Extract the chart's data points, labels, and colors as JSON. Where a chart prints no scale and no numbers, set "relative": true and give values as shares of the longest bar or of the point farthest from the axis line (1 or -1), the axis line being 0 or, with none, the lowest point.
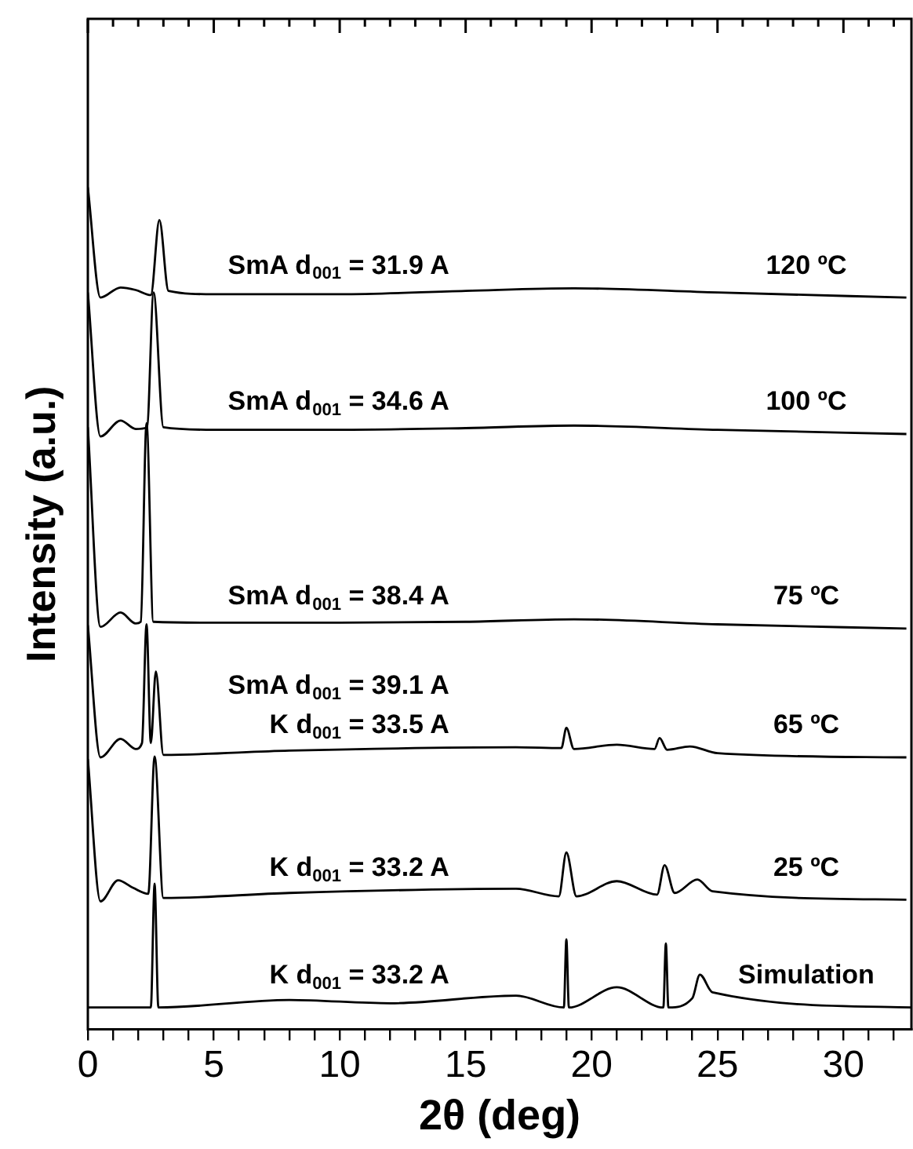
{
  "chart_data": {
    "type": "line",
    "relative": true,
    "xlabel": "2θ (deg)",
    "ylabel": "Intensity (a.u.)",
    "xlim": [
      0,
      32.7
    ],
    "xticks": [
      0,
      {
        "value": 1,
        "label": null
      },
      {
        "value": 2,
        "label": null
      },
      {
        "value": 3,
        "label": null
      },
      {
        "value": 4,
        "label": null
      },
      5,
      {
        "value": 6,
        "label": null
      },
      {
        "value": 7,
        "label": null
      },
      {
        "value": 8,
        "label": null
      },
      {
        "value": 9,
        "label": null
      },
      10,
      {
        "value": 11,
        "label": null
      },
      {
        "value": 12,
        "label": null
      },
      {
        "value": 13,
        "label": null
      },
      {
        "value": 14,
        "label": null
      },
      15,
      {
        "value": 16,
        "label": null
      },
      {
        "value": 17,
        "label": null
      },
      {
        "value": 18,
        "label": null
      },
      {
        "value": 19,
        "label": null
      },
      20,
      {
        "value": 21,
        "label": null
      },
      {
        "value": 22,
        "label": null
      },
      {
        "value": 23,
        "label": null
      },
      {
        "value": 24,
        "label": null
      },
      25,
      {
        "value": 26,
        "label": null
      },
      {
        "value": 27,
        "label": null
      },
      {
        "value": 28,
        "label": null
      },
      {
        "value": 29,
        "label": null
      },
      30,
      {
        "value": 31,
        "label": null
      },
      {
        "value": 32,
        "label": null
      }
    ],
    "grid": false,
    "legend": false,
    "marker": "none",
    "line_style": "solid",
    "series": [
      {
        "name": "120 ºC",
        "color": "#000000",
        "x": [
          0,
          0.5,
          1.3,
          1.9,
          2.5,
          2.84,
          3.2,
          5,
          10,
          15,
          19.3,
          25,
          32.5
        ],
        "values": [
          1.0,
          0.869,
          0.881,
          0.878,
          0.872,
          0.961,
          0.877,
          0.873,
          0.873,
          0.877,
          0.88,
          0.875,
          0.869
        ]
      },
      {
        "name": "100 ºC",
        "color": "#000000",
        "x": [
          0,
          0.5,
          1.3,
          1.9,
          2.35,
          2.61,
          3.0,
          5,
          10,
          15,
          19.3,
          25,
          32.5
        ],
        "values": [
          0.875,
          0.704,
          0.723,
          0.713,
          0.715,
          0.875,
          0.715,
          0.712,
          0.712,
          0.714,
          0.717,
          0.712,
          0.707
        ]
      },
      {
        "name": "75 ºC",
        "color": "#000000",
        "x": [
          0,
          0.5,
          1.3,
          1.9,
          2.1,
          2.33,
          2.6,
          5,
          10,
          15,
          19.3,
          25,
          32.5
        ],
        "values": [
          0.715,
          0.478,
          0.495,
          0.482,
          0.484,
          0.72,
          0.484,
          0.483,
          0.483,
          0.484,
          0.487,
          0.481,
          0.476
        ]
      },
      {
        "name": "65 ºC",
        "color": "#000000",
        "x": [
          0,
          0.5,
          1.3,
          1.9,
          2.15,
          2.33,
          2.5,
          2.7,
          3.0,
          8,
          17,
          18.8,
          19.0,
          19.3,
          21,
          22.5,
          22.7,
          23.0,
          23.9,
          25,
          32.5
        ],
        "values": [
          0.48,
          0.323,
          0.345,
          0.333,
          0.34,
          0.481,
          0.34,
          0.425,
          0.326,
          0.331,
          0.335,
          0.334,
          0.358,
          0.333,
          0.338,
          0.333,
          0.346,
          0.332,
          0.336,
          0.328,
          0.323
        ]
      },
      {
        "name": "25 ºC",
        "color": "#000000",
        "x": [
          0,
          0.5,
          1.2,
          1.8,
          2.4,
          2.65,
          3.0,
          8,
          17,
          18.7,
          19.0,
          19.4,
          21,
          22.6,
          22.9,
          23.3,
          24.2,
          24.8,
          32.5
        ],
        "values": [
          0.321,
          0.152,
          0.177,
          0.168,
          0.161,
          0.324,
          0.156,
          0.162,
          0.167,
          0.158,
          0.21,
          0.158,
          0.176,
          0.16,
          0.195,
          0.162,
          0.178,
          0.164,
          0.154
        ]
      },
      {
        "name": "Simulation",
        "color": "#000000",
        "x": [
          0,
          2.5,
          2.65,
          2.8,
          8,
          12,
          17,
          18.9,
          19.0,
          19.1,
          21,
          22.85,
          22.95,
          23.05,
          24.0,
          24.3,
          24.8,
          32.7
        ],
        "values": [
          0.026,
          0.026,
          0.173,
          0.026,
          0.035,
          0.031,
          0.04,
          0.026,
          0.107,
          0.026,
          0.05,
          0.026,
          0.102,
          0.026,
          0.037,
          0.065,
          0.044,
          0.026
        ]
      }
    ],
    "annotations": [
      "SmA d$_{001}$ = 31.9 A",
      "SmA d$_{001}$ = 34.6 A",
      "SmA d$_{001}$ = 38.4 A",
      "SmA d$_{001}$ = 39.1 A",
      "K d$_{001}$ = 33.5 A",
      "K d$_{001}$ = 33.2 A",
      "K d$_{001}$ = 33.2 A"
    ]
  }
}
